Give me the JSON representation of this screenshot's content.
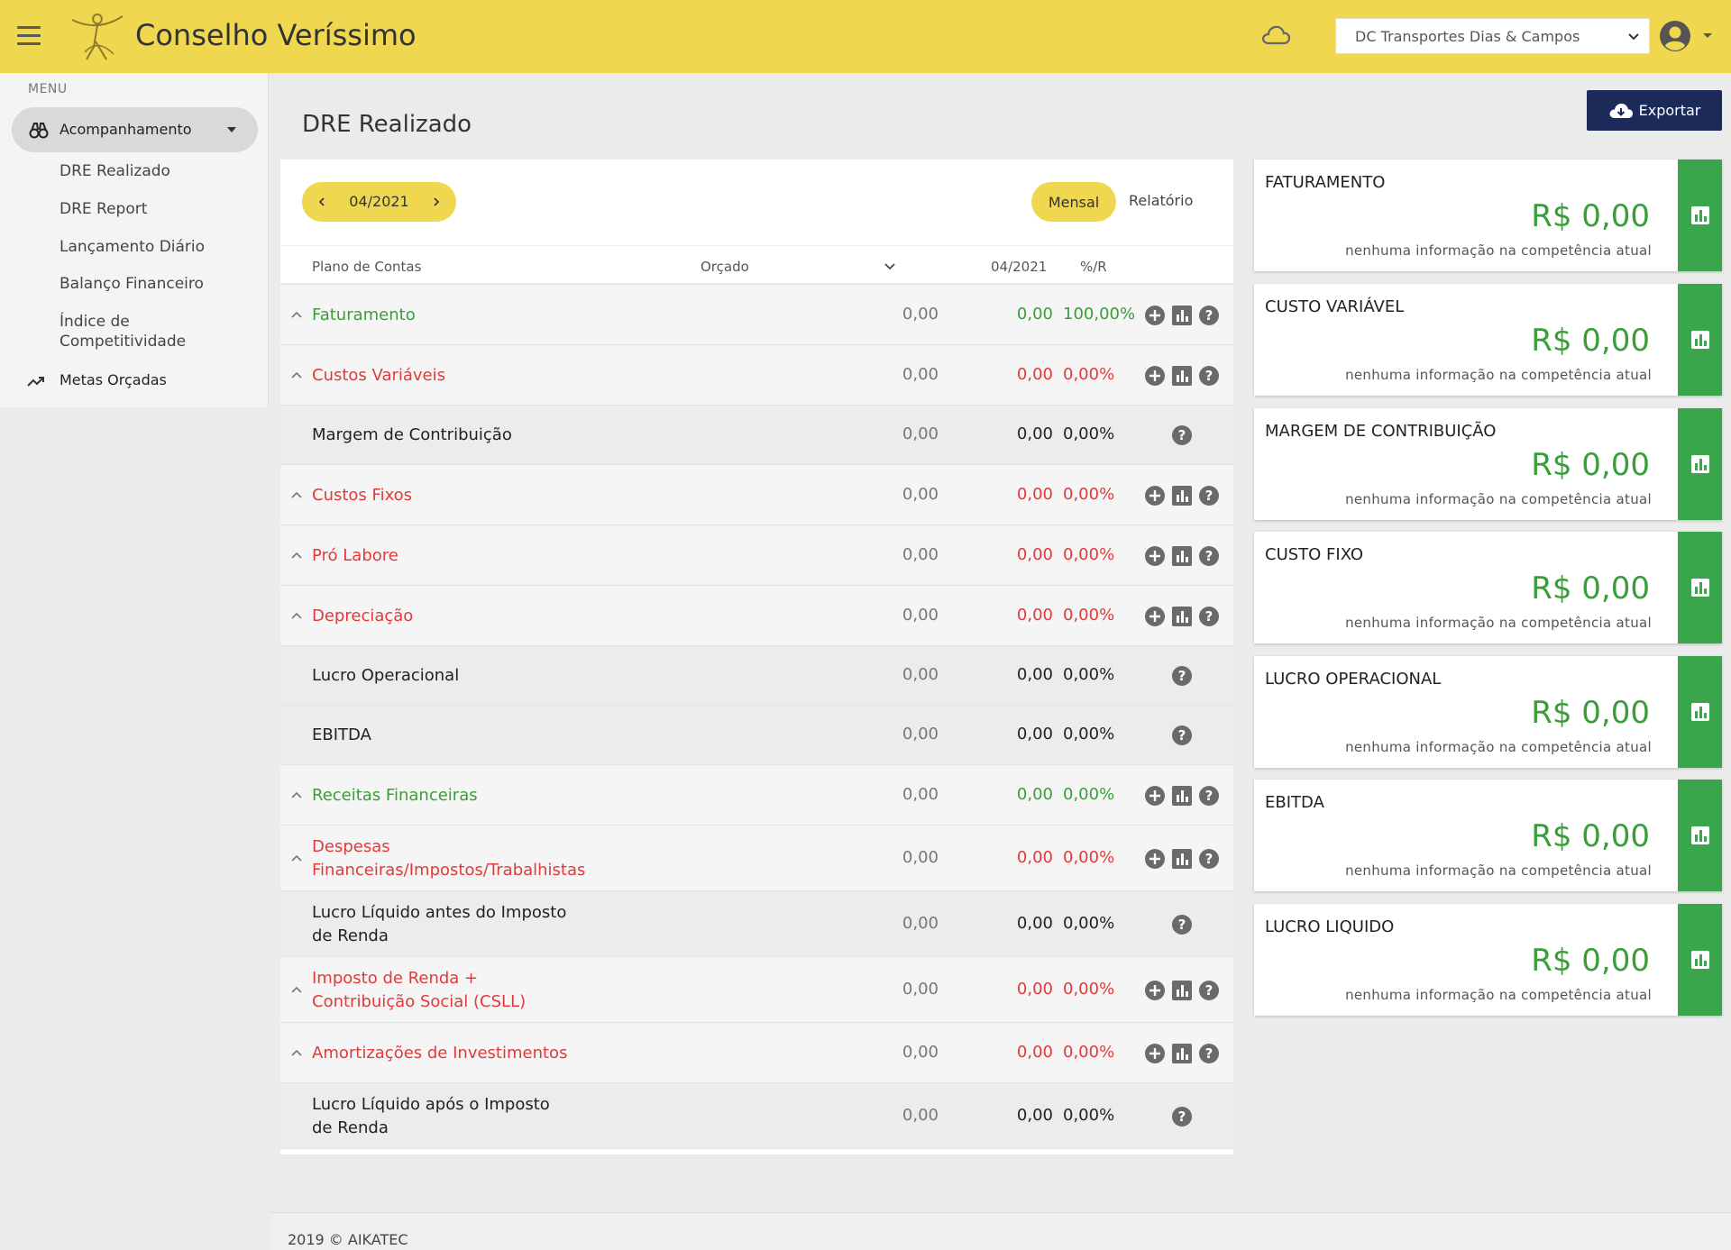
{
  "header": {
    "app_title": "Conselho Veríssimo",
    "company_selected": "DC Transportes Dias & Campos",
    "colors": {
      "header_bg": "#efd84f",
      "accent_green": "#3aa64b",
      "navy": "#1c2a5a"
    }
  },
  "sidebar": {
    "menu_title": "MENU",
    "active_group": "Acompanhamento",
    "sub_items": [
      "DRE Realizado",
      "DRE Report",
      "Lançamento Diário",
      "Balanço Financeiro",
      "Índice de Competitividade"
    ],
    "metas": "Metas Orçadas"
  },
  "main": {
    "page_title": "DRE Realizado",
    "export_label": "Exportar",
    "period": "04/2021",
    "toggle_mensal": "Mensal",
    "toggle_relatorio": "Relatório",
    "columns": {
      "plano": "Plano de Contas",
      "orcado": "Orçado",
      "period": "04/2021",
      "pct": "%/R"
    },
    "rows": [
      {
        "name": "Faturamento",
        "orcado": "0,00",
        "real": "0,00",
        "pct": "100,00%",
        "color": "green",
        "expandable": true
      },
      {
        "name": "Custos Variáveis",
        "orcado": "0,00",
        "real": "0,00",
        "pct": "0,00%",
        "color": "red",
        "expandable": true
      },
      {
        "name": "Margem de Contribuição",
        "orcado": "0,00",
        "real": "0,00",
        "pct": "0,00%",
        "color": "dark",
        "expandable": false
      },
      {
        "name": "Custos Fixos",
        "orcado": "0,00",
        "real": "0,00",
        "pct": "0,00%",
        "color": "red",
        "expandable": true
      },
      {
        "name": "Pró Labore",
        "orcado": "0,00",
        "real": "0,00",
        "pct": "0,00%",
        "color": "red",
        "expandable": true
      },
      {
        "name": "Depreciação",
        "orcado": "0,00",
        "real": "0,00",
        "pct": "0,00%",
        "color": "red",
        "expandable": true
      },
      {
        "name": "Lucro Operacional",
        "orcado": "0,00",
        "real": "0,00",
        "pct": "0,00%",
        "color": "dark",
        "expandable": false
      },
      {
        "name": "EBITDA",
        "orcado": "0,00",
        "real": "0,00",
        "pct": "0,00%",
        "color": "dark",
        "expandable": false
      },
      {
        "name": "Receitas Financeiras",
        "orcado": "0,00",
        "real": "0,00",
        "pct": "0,00%",
        "color": "green",
        "expandable": true
      },
      {
        "name": "Despesas Financeiras/Impostos/Trabalhistas",
        "name_line1": "Despesas",
        "name_line2": "Financeiras/Impostos/Trabalhistas",
        "orcado": "0,00",
        "real": "0,00",
        "pct": "0,00%",
        "color": "red",
        "expandable": true
      },
      {
        "name": "Lucro Líquido antes do Imposto de Renda",
        "name_line1": "Lucro Líquido antes do Imposto",
        "name_line2": "de Renda",
        "orcado": "0,00",
        "real": "0,00",
        "pct": "0,00%",
        "color": "dark",
        "expandable": false
      },
      {
        "name": "Imposto de Renda + Contribuição Social (CSLL)",
        "name_line1": "Imposto de Renda +",
        "name_line2": "Contribuição Social (CSLL)",
        "orcado": "0,00",
        "real": "0,00",
        "pct": "0,00%",
        "color": "red",
        "expandable": true
      },
      {
        "name": "Amortizações de Investimentos",
        "orcado": "0,00",
        "real": "0,00",
        "pct": "0,00%",
        "color": "red",
        "expandable": true
      },
      {
        "name": "Lucro Líquido após o Imposto de Renda",
        "name_line1": "Lucro Líquido após o Imposto",
        "name_line2": "de Renda",
        "orcado": "0,00",
        "real": "0,00",
        "pct": "0,00%",
        "color": "dark",
        "expandable": false
      }
    ]
  },
  "kpis": [
    {
      "title": "FATURAMENTO",
      "value": "R$ 0,00",
      "sub": "nenhuma informação na competência atual"
    },
    {
      "title": "CUSTO VARIÁVEL",
      "value": "R$ 0,00",
      "sub": "nenhuma informação na competência atual"
    },
    {
      "title": "MARGEM DE CONTRIBUIÇÃO",
      "value": "R$ 0,00",
      "sub": "nenhuma informação na competência atual"
    },
    {
      "title": "CUSTO FIXO",
      "value": "R$ 0,00",
      "sub": "nenhuma informação na competência atual"
    },
    {
      "title": "LUCRO OPERACIONAL",
      "value": "R$ 0,00",
      "sub": "nenhuma informação na competência atual"
    },
    {
      "title": "EBITDA",
      "value": "R$ 0,00",
      "sub": "nenhuma informação na competência atual"
    },
    {
      "title": "LUCRO LIQUIDO",
      "value": "R$ 0,00",
      "sub": "nenhuma informação na competência atual"
    }
  ],
  "footer": {
    "text": "2019 © AIKATEC"
  }
}
